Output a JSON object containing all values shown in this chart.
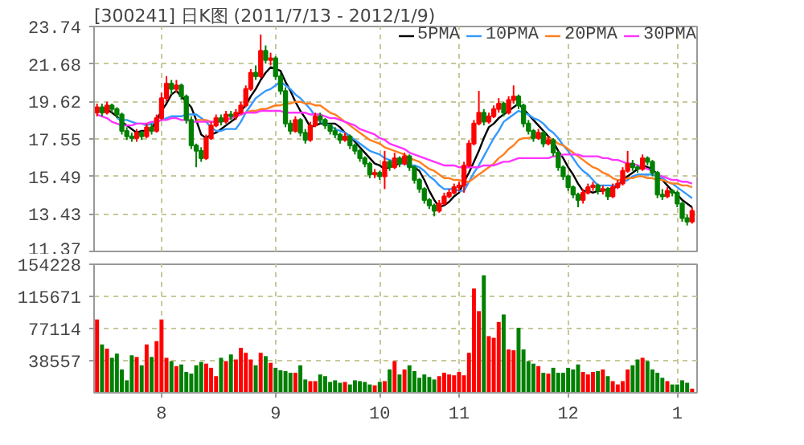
{
  "chart_data": [
    {
      "type": "candlestick",
      "title": "[300241] 日K图 (2011/7/13 - 2012/1/9)",
      "legend": "top right",
      "grid": true,
      "tick_labels": "y",
      "ylim": [
        11.37,
        23.74
      ],
      "yticks": [
        11.37,
        13.43,
        15.49,
        17.55,
        19.62,
        21.68,
        23.74
      ],
      "categories": [
        null,
        null,
        null,
        null,
        null,
        null,
        null,
        null,
        null,
        null,
        null,
        null,
        null,
        "8",
        null,
        null,
        null,
        null,
        null,
        null,
        null,
        null,
        null,
        null,
        null,
        null,
        null,
        null,
        null,
        null,
        null,
        null,
        null,
        null,
        null,
        null,
        "9",
        null,
        null,
        null,
        null,
        null,
        null,
        null,
        null,
        null,
        null,
        null,
        null,
        null,
        null,
        null,
        null,
        null,
        null,
        null,
        null,
        "10",
        null,
        null,
        null,
        null,
        null,
        null,
        null,
        null,
        null,
        null,
        null,
        null,
        null,
        null,
        null,
        "11",
        null,
        null,
        null,
        null,
        null,
        null,
        null,
        null,
        null,
        null,
        null,
        null,
        null,
        null,
        null,
        null,
        null,
        null,
        null,
        null,
        null,
        "12",
        null,
        null,
        null,
        null,
        null,
        null,
        null,
        null,
        null,
        null,
        null,
        null,
        null,
        null,
        null,
        null,
        null,
        null,
        null,
        null,
        null,
        "1",
        null,
        null,
        null
      ],
      "ohlc": [
        [
          19.0,
          19.5,
          18.8,
          19.3
        ],
        [
          19.3,
          19.5,
          18.8,
          19.0
        ],
        [
          19.0,
          19.6,
          18.9,
          19.4
        ],
        [
          19.4,
          19.5,
          19.0,
          19.2
        ],
        [
          19.2,
          19.3,
          18.7,
          18.9
        ],
        [
          18.9,
          19.0,
          17.8,
          18.0
        ],
        [
          18.0,
          18.2,
          17.5,
          17.7
        ],
        [
          17.7,
          17.9,
          17.4,
          17.6
        ],
        [
          17.6,
          18.1,
          17.4,
          17.9
        ],
        [
          17.9,
          18.0,
          17.5,
          17.7
        ],
        [
          17.7,
          18.4,
          17.6,
          18.2
        ],
        [
          18.2,
          18.4,
          17.8,
          18.0
        ],
        [
          18.0,
          18.9,
          17.9,
          18.7
        ],
        [
          18.7,
          20.1,
          18.6,
          19.8
        ],
        [
          19.8,
          21.0,
          19.6,
          20.6
        ],
        [
          20.6,
          20.8,
          20.0,
          20.3
        ],
        [
          20.3,
          20.8,
          20.1,
          20.5
        ],
        [
          20.5,
          20.6,
          19.7,
          19.9
        ],
        [
          19.9,
          20.0,
          18.4,
          18.6
        ],
        [
          18.6,
          18.8,
          17.0,
          17.2
        ],
        [
          17.2,
          17.3,
          16.0,
          16.9
        ],
        [
          16.9,
          17.1,
          16.3,
          16.5
        ],
        [
          16.5,
          17.8,
          16.4,
          17.6
        ],
        [
          17.6,
          18.5,
          17.5,
          18.3
        ],
        [
          18.3,
          18.9,
          18.2,
          18.7
        ],
        [
          18.7,
          18.9,
          18.3,
          18.5
        ],
        [
          18.5,
          19.1,
          18.4,
          18.9
        ],
        [
          18.9,
          19.1,
          18.6,
          18.8
        ],
        [
          18.8,
          19.2,
          18.6,
          19.0
        ],
        [
          19.0,
          19.6,
          18.9,
          19.4
        ],
        [
          19.4,
          20.5,
          19.3,
          20.3
        ],
        [
          20.3,
          21.4,
          20.2,
          21.2
        ],
        [
          21.2,
          21.6,
          20.8,
          21.0
        ],
        [
          21.0,
          23.3,
          20.9,
          22.4
        ],
        [
          22.4,
          22.7,
          21.7,
          21.9
        ],
        [
          21.9,
          22.3,
          21.6,
          22.0
        ],
        [
          22.0,
          22.1,
          20.8,
          21.0
        ],
        [
          21.0,
          21.2,
          20.0,
          20.2
        ],
        [
          20.2,
          20.4,
          18.2,
          18.4
        ],
        [
          18.4,
          18.6,
          17.8,
          18.0
        ],
        [
          18.0,
          18.8,
          17.9,
          18.6
        ],
        [
          18.6,
          18.7,
          17.7,
          17.9
        ],
        [
          17.9,
          18.1,
          17.3,
          17.5
        ],
        [
          17.5,
          18.5,
          17.4,
          18.3
        ],
        [
          18.3,
          19.0,
          18.2,
          18.8
        ],
        [
          18.8,
          19.0,
          18.4,
          18.6
        ],
        [
          18.6,
          18.7,
          18.1,
          18.3
        ],
        [
          18.3,
          18.4,
          17.8,
          18.0
        ],
        [
          18.0,
          18.2,
          17.6,
          17.8
        ],
        [
          17.8,
          17.9,
          17.3,
          17.5
        ],
        [
          17.5,
          17.9,
          17.4,
          17.7
        ],
        [
          17.7,
          17.8,
          17.0,
          17.2
        ],
        [
          17.2,
          17.3,
          16.7,
          16.9
        ],
        [
          16.9,
          17.0,
          16.3,
          16.5
        ],
        [
          16.5,
          16.6,
          16.0,
          16.2
        ],
        [
          16.2,
          16.3,
          15.4,
          15.6
        ],
        [
          15.6,
          15.9,
          15.4,
          15.7
        ],
        [
          15.7,
          15.8,
          15.3,
          15.5
        ],
        [
          15.5,
          16.9,
          14.8,
          16.3
        ],
        [
          16.3,
          16.4,
          15.8,
          16.0
        ],
        [
          16.0,
          16.8,
          15.9,
          16.5
        ],
        [
          16.5,
          16.6,
          16.0,
          16.2
        ],
        [
          16.2,
          16.8,
          16.1,
          16.6
        ],
        [
          16.6,
          16.7,
          15.8,
          16.0
        ],
        [
          16.0,
          16.1,
          15.1,
          15.3
        ],
        [
          15.3,
          15.4,
          14.6,
          14.8
        ],
        [
          14.8,
          14.9,
          14.0,
          14.2
        ],
        [
          14.2,
          14.3,
          13.7,
          13.9
        ],
        [
          13.9,
          14.0,
          13.3,
          13.6
        ],
        [
          13.6,
          14.2,
          13.5,
          14.0
        ],
        [
          14.0,
          14.6,
          13.9,
          14.4
        ],
        [
          14.4,
          14.8,
          14.3,
          14.6
        ],
        [
          14.6,
          15.1,
          14.5,
          14.9
        ],
        [
          14.9,
          15.2,
          14.7,
          15.0
        ],
        [
          15.0,
          16.3,
          14.6,
          16.1
        ],
        [
          16.1,
          17.5,
          16.0,
          17.3
        ],
        [
          17.3,
          18.6,
          17.2,
          18.4
        ],
        [
          18.4,
          20.2,
          18.3,
          19.0
        ],
        [
          19.0,
          19.2,
          18.3,
          18.5
        ],
        [
          18.5,
          19.0,
          18.4,
          18.8
        ],
        [
          18.8,
          19.4,
          18.7,
          19.2
        ],
        [
          19.2,
          19.8,
          19.0,
          19.5
        ],
        [
          19.5,
          19.6,
          18.8,
          19.0
        ],
        [
          19.0,
          19.9,
          18.9,
          19.7
        ],
        [
          19.7,
          20.5,
          19.5,
          19.9
        ],
        [
          19.9,
          20.0,
          19.2,
          19.4
        ],
        [
          19.4,
          19.5,
          18.2,
          18.4
        ],
        [
          18.4,
          18.6,
          17.8,
          18.0
        ],
        [
          18.0,
          18.1,
          17.4,
          17.6
        ],
        [
          17.6,
          18.1,
          17.5,
          17.9
        ],
        [
          17.9,
          18.0,
          17.1,
          17.3
        ],
        [
          17.3,
          17.7,
          17.2,
          17.5
        ],
        [
          17.5,
          17.6,
          16.6,
          16.8
        ],
        [
          16.8,
          16.9,
          15.8,
          16.0
        ],
        [
          16.0,
          16.1,
          15.3,
          15.5
        ],
        [
          15.5,
          15.6,
          14.7,
          14.9
        ],
        [
          14.9,
          15.0,
          14.3,
          14.5
        ],
        [
          14.5,
          14.6,
          13.8,
          14.2
        ],
        [
          14.2,
          14.8,
          14.0,
          14.6
        ],
        [
          14.6,
          15.1,
          14.5,
          14.9
        ],
        [
          14.9,
          15.2,
          14.7,
          15.0
        ],
        [
          15.0,
          15.1,
          14.5,
          14.7
        ],
        [
          14.7,
          15.0,
          14.5,
          14.8
        ],
        [
          14.8,
          14.9,
          14.2,
          14.4
        ],
        [
          14.4,
          15.1,
          14.3,
          14.9
        ],
        [
          14.9,
          15.3,
          14.8,
          15.1
        ],
        [
          15.1,
          16.0,
          15.0,
          15.8
        ],
        [
          15.8,
          16.9,
          15.7,
          16.2
        ],
        [
          16.2,
          16.4,
          15.8,
          16.0
        ],
        [
          16.0,
          16.1,
          15.7,
          15.9
        ],
        [
          15.9,
          16.7,
          15.8,
          16.5
        ],
        [
          16.5,
          16.6,
          16.1,
          16.3
        ],
        [
          16.3,
          16.4,
          15.5,
          15.7
        ],
        [
          15.7,
          15.8,
          14.3,
          14.5
        ],
        [
          14.5,
          14.8,
          14.2,
          14.4
        ],
        [
          14.4,
          14.9,
          14.3,
          14.7
        ],
        [
          14.7,
          14.8,
          14.4,
          14.6
        ],
        [
          14.6,
          14.7,
          13.8,
          14.0
        ],
        [
          14.0,
          14.1,
          13.0,
          13.2
        ],
        [
          13.2,
          13.4,
          12.8,
          13.0
        ],
        [
          13.0,
          13.8,
          12.9,
          13.6
        ]
      ],
      "colors": [
        "#ff0000",
        "#008000",
        "#ff0000",
        "#008000",
        "#008000",
        "#008000",
        "#008000",
        "#008000",
        "#ff0000",
        "#008000",
        "#ff0000",
        "#008000",
        "#ff0000",
        "#ff0000",
        "#ff0000",
        "#008000",
        "#ff0000",
        "#008000",
        "#008000",
        "#008000",
        "#008000",
        "#008000",
        "#ff0000",
        "#ff0000",
        "#ff0000",
        "#008000",
        "#ff0000",
        "#008000",
        "#ff0000",
        "#ff0000",
        "#ff0000",
        "#ff0000",
        "#008000",
        "#ff0000",
        "#008000",
        "#ff0000",
        "#008000",
        "#008000",
        "#008000",
        "#008000",
        "#ff0000",
        "#008000",
        "#008000",
        "#ff0000",
        "#ff0000",
        "#008000",
        "#008000",
        "#008000",
        "#008000",
        "#008000",
        "#ff0000",
        "#008000",
        "#008000",
        "#008000",
        "#008000",
        "#008000",
        "#ff0000",
        "#008000",
        "#ff0000",
        "#008000",
        "#ff0000",
        "#008000",
        "#ff0000",
        "#008000",
        "#008000",
        "#008000",
        "#008000",
        "#008000",
        "#008000",
        "#ff0000",
        "#ff0000",
        "#ff0000",
        "#ff0000",
        "#ff0000",
        "#ff0000",
        "#ff0000",
        "#ff0000",
        "#ff0000",
        "#008000",
        "#ff0000",
        "#ff0000",
        "#ff0000",
        "#008000",
        "#ff0000",
        "#ff0000",
        "#008000",
        "#008000",
        "#008000",
        "#008000",
        "#ff0000",
        "#008000",
        "#ff0000",
        "#008000",
        "#008000",
        "#008000",
        "#008000",
        "#008000",
        "#008000",
        "#ff0000",
        "#ff0000",
        "#ff0000",
        "#008000",
        "#ff0000",
        "#008000",
        "#ff0000",
        "#ff0000",
        "#ff0000",
        "#ff0000",
        "#008000",
        "#008000",
        "#ff0000",
        "#008000",
        "#008000",
        "#008000",
        "#008000",
        "#ff0000",
        "#008000",
        "#008000",
        "#008000",
        "#008000",
        "#ff0000"
      ],
      "series": [
        {
          "type": "line",
          "name": "5PMA",
          "color": "#000000",
          "values": [
            null,
            null,
            19.2,
            19.0,
            18.8,
            18.5,
            18.3,
            18.1,
            17.9,
            18.0,
            18.0,
            18.1,
            18.6,
            19.1,
            19.5,
            20.0,
            20.2,
            19.9,
            19.6,
            19.3,
            18.6,
            17.8,
            17.6,
            17.8,
            17.9,
            18.1,
            18.3,
            18.5,
            18.7,
            19.1,
            19.4,
            19.9,
            20.3,
            20.8,
            21.2,
            21.5,
            21.4,
            21.3,
            20.7,
            20.2,
            19.6,
            19.1,
            18.7,
            18.2,
            18.3,
            18.4,
            18.4,
            18.4,
            18.4,
            18.2,
            17.9,
            17.7,
            17.4,
            17.1,
            16.8,
            16.5,
            16.2,
            16.1,
            15.9,
            16.0,
            16.1,
            16.2,
            16.3,
            16.1,
            16.0,
            15.8,
            15.3,
            14.7,
            14.2,
            13.8,
            13.9,
            14.1,
            14.4,
            14.6,
            15.2,
            15.7,
            16.3,
            16.9,
            17.6,
            18.2,
            18.4,
            18.7,
            18.9,
            19.1,
            19.3,
            19.5,
            19.2,
            18.9,
            18.6,
            18.3,
            18.0,
            17.7,
            17.4,
            16.9,
            16.5,
            16.0,
            15.6,
            15.1,
            14.7,
            14.7,
            14.6,
            14.7,
            14.7,
            14.8,
            14.8,
            15.0,
            15.3,
            15.5,
            15.7,
            15.9,
            16.1,
            16.0,
            15.9,
            15.6,
            15.3,
            15.0,
            14.7,
            14.5,
            14.2,
            14.0,
            13.8
          ]
        },
        {
          "type": "line",
          "name": "10PMA",
          "color": "#3399ff",
          "values": [
            null,
            null,
            null,
            null,
            18.7,
            18.6,
            18.6,
            18.5,
            18.4,
            18.4,
            18.3,
            18.4,
            18.5,
            18.6,
            18.7,
            18.8,
            18.8,
            18.8,
            18.9,
            18.9,
            18.9,
            18.7,
            18.5,
            18.2,
            18.0,
            18.0,
            18.1,
            18.1,
            18.1,
            18.5,
            19.0,
            19.4,
            19.8,
            20.0,
            20.2,
            20.3,
            20.5,
            20.7,
            20.5,
            20.3,
            20.0,
            19.8,
            19.5,
            19.2,
            18.8,
            18.5,
            18.4,
            18.3,
            18.1,
            18.0,
            17.9,
            17.7,
            17.5,
            17.3,
            17.1,
            16.9,
            16.8,
            16.7,
            16.5,
            16.4,
            16.3,
            16.2,
            16.2,
            16.1,
            16.1,
            16.0,
            15.8,
            15.5,
            15.3,
            15.0,
            14.8,
            14.8,
            14.8,
            14.7,
            14.7,
            15.2,
            15.7,
            16.1,
            16.6,
            17.1,
            17.6,
            18.0,
            18.5,
            18.7,
            18.9,
            19.1,
            19.0,
            18.9,
            18.7,
            18.6,
            18.4,
            18.1,
            17.9,
            17.6,
            17.2,
            16.9,
            16.5,
            16.1,
            15.8,
            15.6,
            15.3,
            15.0,
            15.0,
            15.0,
            15.0,
            15.0,
            15.2,
            15.3,
            15.5,
            15.6,
            15.6,
            15.6,
            15.6,
            15.5,
            15.4,
            15.2,
            15.1,
            14.9,
            14.7,
            14.5,
            14.3
          ]
        },
        {
          "type": "line",
          "name": "20PMA",
          "color": "#ff7f1f",
          "values": [
            null,
            null,
            null,
            null,
            null,
            null,
            null,
            null,
            null,
            null,
            null,
            null,
            null,
            null,
            null,
            null,
            null,
            null,
            null,
            null,
            18.6,
            18.6,
            18.6,
            18.5,
            18.5,
            18.5,
            18.6,
            18.7,
            18.8,
            18.9,
            19.0,
            19.1,
            19.1,
            19.2,
            19.2,
            19.3,
            19.4,
            19.4,
            19.5,
            19.5,
            19.6,
            19.6,
            19.5,
            19.5,
            19.4,
            19.4,
            19.2,
            19.0,
            18.9,
            18.7,
            18.5,
            18.3,
            18.1,
            17.9,
            17.7,
            17.5,
            17.4,
            17.3,
            17.1,
            17.0,
            16.9,
            16.8,
            16.7,
            16.5,
            16.4,
            16.3,
            16.1,
            15.9,
            15.8,
            15.6,
            15.4,
            15.4,
            15.3,
            15.3,
            15.2,
            15.2,
            15.4,
            15.6,
            15.8,
            16.0,
            16.2,
            16.5,
            16.7,
            17.0,
            17.2,
            17.5,
            17.6,
            17.6,
            17.7,
            17.7,
            17.6,
            17.6,
            17.5,
            17.3,
            17.2,
            17.0,
            16.8,
            16.6,
            16.4,
            16.2,
            16.0,
            15.9,
            15.7,
            15.6,
            15.4,
            15.3,
            15.3,
            15.4,
            15.4,
            15.5,
            15.5,
            15.4,
            15.4,
            15.3,
            15.3,
            15.2,
            15.1,
            15.1,
            15.0,
            15.0,
            14.9
          ]
        },
        {
          "type": "line",
          "name": "30PMA",
          "color": "#ff33ff",
          "values": [
            18.9,
            18.8,
            18.7,
            18.5,
            18.4,
            18.3,
            18.3,
            18.3,
            18.4,
            18.4,
            18.4,
            18.5,
            18.5,
            18.6,
            18.6,
            18.7,
            18.7,
            18.6,
            18.6,
            18.5,
            18.5,
            18.5,
            18.5,
            18.5,
            18.5,
            18.5,
            18.6,
            18.7,
            18.8,
            18.9,
            19.0,
            19.0,
            19.0,
            19.1,
            19.1,
            19.1,
            19.1,
            19.1,
            19.0,
            19.0,
            19.0,
            19.0,
            19.0,
            18.9,
            18.9,
            18.9,
            18.8,
            18.7,
            18.7,
            18.6,
            18.5,
            18.4,
            18.3,
            18.1,
            18.0,
            17.9,
            17.8,
            17.6,
            17.5,
            17.3,
            17.2,
            17.1,
            17.0,
            16.8,
            16.7,
            16.6,
            16.5,
            16.4,
            16.3,
            16.2,
            16.1,
            16.1,
            16.1,
            16.0,
            16.0,
            16.0,
            16.0,
            16.0,
            16.1,
            16.1,
            16.1,
            16.2,
            16.3,
            16.3,
            16.4,
            16.5,
            16.5,
            16.5,
            16.5,
            16.5,
            16.5,
            16.5,
            16.6,
            16.6,
            16.7,
            16.7,
            16.7,
            16.7,
            16.6,
            16.6,
            16.6,
            16.6,
            16.5,
            16.5,
            16.4,
            16.4,
            16.3,
            16.2,
            16.2,
            16.1,
            16.0,
            15.9,
            15.8,
            15.6,
            15.5,
            15.4,
            15.3,
            15.3,
            15.2,
            15.2,
            15.1
          ]
        }
      ]
    },
    {
      "type": "bar",
      "grid": true,
      "ylim": [
        0,
        154228
      ],
      "yticks": [
        38557,
        77114,
        115671,
        154228
      ],
      "categories": [
        null,
        null,
        null,
        null,
        null,
        null,
        null,
        null,
        null,
        null,
        null,
        null,
        null,
        "8",
        null,
        null,
        null,
        null,
        null,
        null,
        null,
        null,
        null,
        null,
        null,
        null,
        null,
        null,
        null,
        null,
        null,
        null,
        null,
        null,
        null,
        null,
        "9",
        null,
        null,
        null,
        null,
        null,
        null,
        null,
        null,
        null,
        null,
        null,
        null,
        null,
        null,
        null,
        null,
        null,
        null,
        null,
        null,
        "10",
        null,
        null,
        null,
        null,
        null,
        null,
        null,
        null,
        null,
        null,
        null,
        null,
        null,
        null,
        null,
        "11",
        null,
        null,
        null,
        null,
        null,
        null,
        null,
        null,
        null,
        null,
        null,
        null,
        null,
        null,
        null,
        null,
        null,
        null,
        null,
        null,
        null,
        "12",
        null,
        null,
        null,
        null,
        null,
        null,
        null,
        null,
        null,
        null,
        null,
        null,
        null,
        null,
        null,
        null,
        null,
        null,
        null,
        null,
        null,
        "1",
        null,
        null,
        null
      ],
      "values": [
        88000,
        58000,
        53000,
        42000,
        47000,
        28000,
        15000,
        45000,
        43000,
        33000,
        58000,
        43000,
        62000,
        88000,
        42000,
        38000,
        32000,
        34000,
        25000,
        23000,
        33000,
        37000,
        35000,
        30000,
        20000,
        42000,
        38000,
        46000,
        40000,
        54000,
        48000,
        40000,
        33000,
        48000,
        44000,
        36000,
        30000,
        27000,
        26000,
        24000,
        24000,
        33000,
        16000,
        14000,
        14000,
        22000,
        20000,
        13000,
        15000,
        12000,
        13000,
        10000,
        15000,
        14000,
        13000,
        10000,
        9000,
        13000,
        14000,
        28000,
        38000,
        22000,
        28000,
        33000,
        26000,
        18000,
        22000,
        19000,
        16000,
        20000,
        24000,
        22000,
        21000,
        25000,
        21000,
        48000,
        125000,
        98000,
        141000,
        68000,
        66000,
        85000,
        94000,
        52000,
        51000,
        78000,
        52000,
        38000,
        35000,
        32000,
        24000,
        23000,
        30000,
        24000,
        24000,
        30000,
        28000,
        34000,
        25000,
        22000,
        25000,
        26000,
        28000,
        20000,
        14000,
        10000,
        14000,
        28000,
        33000,
        40000,
        42000,
        38000,
        28000,
        24000,
        18000,
        14000,
        10000,
        10000,
        15000,
        12000,
        5000
      ],
      "colors": [
        "#ff0000",
        "#008000",
        "#ff0000",
        "#008000",
        "#008000",
        "#008000",
        "#008000",
        "#008000",
        "#ff0000",
        "#008000",
        "#ff0000",
        "#008000",
        "#ff0000",
        "#ff0000",
        "#ff0000",
        "#008000",
        "#ff0000",
        "#008000",
        "#008000",
        "#008000",
        "#008000",
        "#008000",
        "#ff0000",
        "#ff0000",
        "#ff0000",
        "#008000",
        "#ff0000",
        "#008000",
        "#ff0000",
        "#ff0000",
        "#ff0000",
        "#ff0000",
        "#008000",
        "#ff0000",
        "#008000",
        "#ff0000",
        "#008000",
        "#008000",
        "#008000",
        "#008000",
        "#ff0000",
        "#008000",
        "#008000",
        "#ff0000",
        "#ff0000",
        "#008000",
        "#008000",
        "#008000",
        "#008000",
        "#008000",
        "#ff0000",
        "#008000",
        "#008000",
        "#008000",
        "#008000",
        "#008000",
        "#ff0000",
        "#008000",
        "#ff0000",
        "#008000",
        "#ff0000",
        "#008000",
        "#ff0000",
        "#008000",
        "#008000",
        "#008000",
        "#008000",
        "#008000",
        "#008000",
        "#ff0000",
        "#ff0000",
        "#ff0000",
        "#ff0000",
        "#ff0000",
        "#ff0000",
        "#ff0000",
        "#ff0000",
        "#ff0000",
        "#008000",
        "#ff0000",
        "#ff0000",
        "#ff0000",
        "#008000",
        "#ff0000",
        "#ff0000",
        "#008000",
        "#008000",
        "#008000",
        "#008000",
        "#ff0000",
        "#008000",
        "#ff0000",
        "#008000",
        "#008000",
        "#008000",
        "#008000",
        "#008000",
        "#008000",
        "#ff0000",
        "#ff0000",
        "#ff0000",
        "#008000",
        "#ff0000",
        "#008000",
        "#ff0000",
        "#ff0000",
        "#ff0000",
        "#ff0000",
        "#008000",
        "#008000",
        "#ff0000",
        "#008000",
        "#008000",
        "#008000",
        "#008000",
        "#ff0000",
        "#008000",
        "#008000",
        "#008000",
        "#008000",
        "#ff0000"
      ]
    }
  ]
}
